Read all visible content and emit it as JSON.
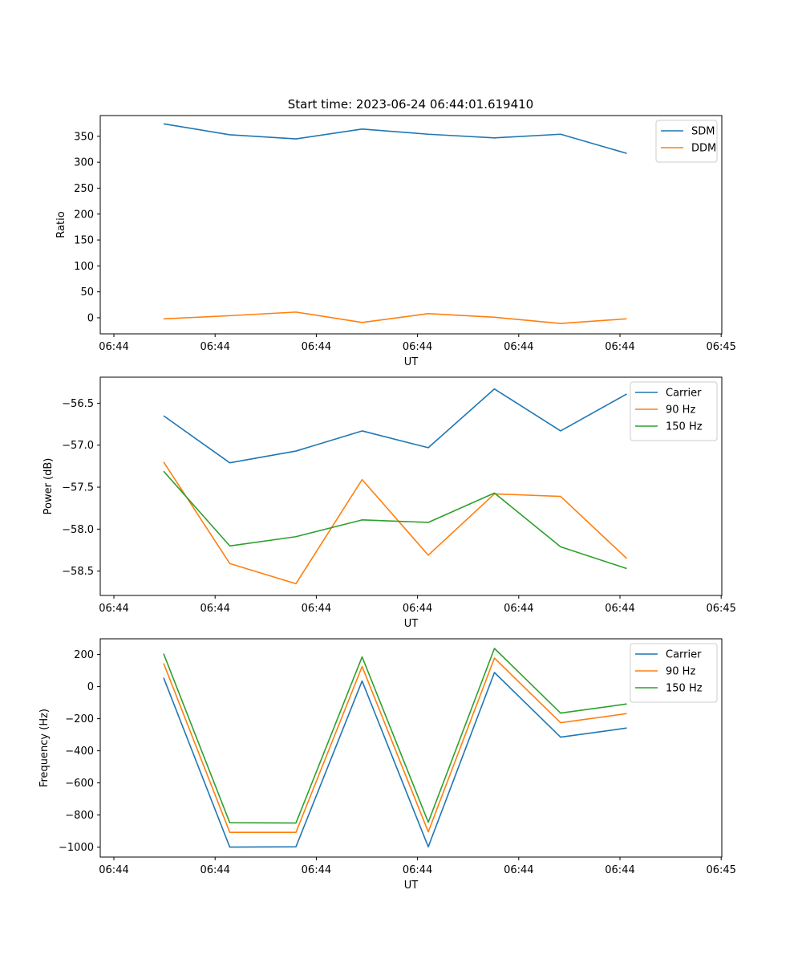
{
  "figure": {
    "title": "Start time: 2023-06-24 06:44:01.619410"
  },
  "colors": {
    "blue": "#1f77b4",
    "orange": "#ff7f0e",
    "green": "#2ca02c"
  },
  "chart_data": [
    {
      "type": "line",
      "title": "Start time: 2023-06-24 06:44:01.619410",
      "xlabel": "UT",
      "ylabel": "Ratio",
      "x_tick_labels": [
        "06:44",
        "06:44",
        "06:44",
        "06:44",
        "06:44",
        "06:44",
        "06:45"
      ],
      "y_ticks": [
        0,
        50,
        100,
        150,
        200,
        250,
        300,
        350
      ],
      "ylim": [
        -31,
        390
      ],
      "legend_position": "top-right",
      "grid": false,
      "series": [
        {
          "name": "SDM",
          "color": "#1f77b4",
          "values": [
            374,
            353,
            345,
            364,
            354,
            347,
            354,
            317
          ]
        },
        {
          "name": "DDM",
          "color": "#ff7f0e",
          "values": [
            -2,
            4,
            11,
            -9,
            8,
            1,
            -11,
            -2
          ]
        }
      ]
    },
    {
      "type": "line",
      "xlabel": "UT",
      "ylabel": "Power (dB)",
      "x_tick_labels": [
        "06:44",
        "06:44",
        "06:44",
        "06:44",
        "06:44",
        "06:44",
        "06:45"
      ],
      "y_ticks": [
        -58.5,
        -58.0,
        -57.5,
        -57.0,
        -56.5
      ],
      "y_tick_labels": [
        "−58.5",
        "−58.0",
        "−57.5",
        "−57.0",
        "−56.5"
      ],
      "ylim": [
        -58.79,
        -56.19
      ],
      "legend_position": "top-right",
      "grid": false,
      "series": [
        {
          "name": "Carrier",
          "color": "#1f77b4",
          "values": [
            -56.65,
            -57.21,
            -57.07,
            -56.83,
            -57.03,
            -56.33,
            -56.83,
            -56.39
          ]
        },
        {
          "name": "90 Hz",
          "color": "#ff7f0e",
          "values": [
            -57.2,
            -58.41,
            -58.65,
            -57.41,
            -58.31,
            -57.58,
            -57.61,
            -58.35
          ]
        },
        {
          "name": "150 Hz",
          "color": "#2ca02c",
          "values": [
            -57.31,
            -58.2,
            -58.09,
            -57.89,
            -57.92,
            -57.57,
            -58.21,
            -58.47
          ]
        }
      ]
    },
    {
      "type": "line",
      "xlabel": "UT",
      "ylabel": "Frequency (Hz)",
      "x_tick_labels": [
        "06:44",
        "06:44",
        "06:44",
        "06:44",
        "06:44",
        "06:44",
        "06:45"
      ],
      "y_ticks": [
        -1000,
        -800,
        -600,
        -400,
        -200,
        0,
        200
      ],
      "y_tick_labels": [
        "−1000",
        "−800",
        "−600",
        "−400",
        "−200",
        "0",
        "200"
      ],
      "ylim": [
        -1062,
        298
      ],
      "legend_position": "top-right",
      "grid": false,
      "series": [
        {
          "name": "Carrier",
          "color": "#1f77b4",
          "values": [
            55,
            -1000,
            -998,
            35,
            -998,
            88,
            -315,
            -258
          ]
        },
        {
          "name": "90 Hz",
          "color": "#ff7f0e",
          "values": [
            145,
            -908,
            -908,
            125,
            -905,
            178,
            -225,
            -168
          ]
        },
        {
          "name": "150 Hz",
          "color": "#2ca02c",
          "values": [
            205,
            -848,
            -850,
            185,
            -845,
            238,
            -165,
            -108
          ]
        }
      ]
    }
  ]
}
